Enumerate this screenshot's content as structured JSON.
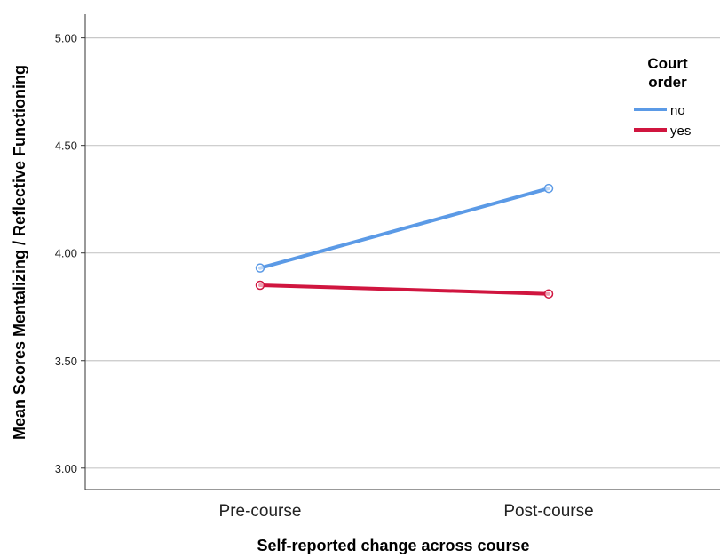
{
  "chart_data": {
    "type": "line",
    "xlabel": "Self-reported change across course",
    "ylabel": "Mean Scores Mentalizing / Reflective Functioning",
    "categories": [
      "Pre-course",
      "Post-course"
    ],
    "ylim": [
      2.9,
      5.11
    ],
    "yticks": [
      "3.00",
      "3.50",
      "4.00",
      "4.50",
      "5.00"
    ],
    "ytick_values": [
      3.0,
      3.5,
      4.0,
      4.5,
      5.0
    ],
    "grid": "horizontal",
    "legend": {
      "title_line1": "Court",
      "title_line2": "order",
      "placement": "top-right"
    },
    "series": [
      {
        "name": "no",
        "color": "#5b9ae6",
        "values": [
          3.93,
          4.3
        ]
      },
      {
        "name": "yes",
        "color": "#d0153f",
        "values": [
          3.85,
          3.81
        ]
      }
    ]
  }
}
